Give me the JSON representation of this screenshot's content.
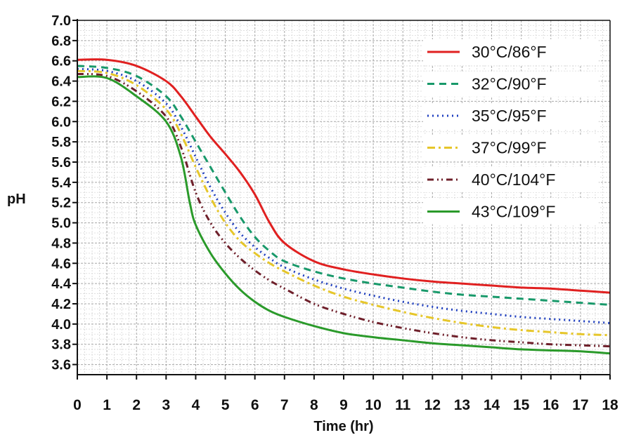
{
  "chart_data": {
    "type": "line",
    "title": "",
    "xlabel": "Time (hr)",
    "ylabel": "pH",
    "xlim": [
      0,
      18
    ],
    "ylim": [
      3.5,
      7.0
    ],
    "x_ticks": [
      0,
      1,
      2,
      3,
      4,
      5,
      6,
      7,
      8,
      9,
      10,
      11,
      12,
      13,
      14,
      15,
      16,
      17,
      18
    ],
    "y_ticks": [
      3.6,
      3.8,
      4.0,
      4.2,
      4.4,
      4.6,
      4.8,
      5.0,
      5.2,
      5.4,
      5.6,
      5.8,
      6.0,
      6.2,
      6.4,
      6.6,
      6.8,
      7.0
    ],
    "x_tick_labels": [
      "0",
      "1",
      "2",
      "3",
      "4",
      "5",
      "6",
      "7",
      "8",
      "9",
      "10",
      "11",
      "12",
      "13",
      "14",
      "15",
      "16",
      "17",
      "18"
    ],
    "y_tick_labels": [
      "3.6",
      "3.8",
      "4.0",
      "4.2",
      "4.4",
      "4.6",
      "4.8",
      "5.0",
      "5.2",
      "5.4",
      "5.6",
      "5.8",
      "6.0",
      "6.2",
      "6.4",
      "6.6",
      "6.8",
      "7.0"
    ],
    "grid": true,
    "legend_position": "top-right",
    "series": [
      {
        "name": "30°C/86°F",
        "color": "#e02020",
        "dash": "solid",
        "x": [
          0,
          1,
          2,
          3,
          3.5,
          4,
          4.5,
          5,
          5.5,
          6,
          6.5,
          7,
          8,
          9,
          10,
          11,
          12,
          13,
          14,
          15,
          16,
          17,
          18
        ],
        "values": [
          6.61,
          6.61,
          6.55,
          6.4,
          6.25,
          6.05,
          5.85,
          5.68,
          5.5,
          5.28,
          5.0,
          4.8,
          4.62,
          4.54,
          4.49,
          4.45,
          4.42,
          4.4,
          4.38,
          4.36,
          4.35,
          4.33,
          4.31
        ]
      },
      {
        "name": "32°C/90°F",
        "color": "#18996a",
        "dash": "dashed",
        "x": [
          0,
          1,
          2,
          3,
          3.5,
          4,
          4.5,
          5,
          5.5,
          6,
          6.5,
          7,
          8,
          9,
          10,
          11,
          12,
          13,
          14,
          15,
          16,
          17,
          18
        ],
        "values": [
          6.55,
          6.53,
          6.45,
          6.25,
          6.05,
          5.8,
          5.55,
          5.3,
          5.06,
          4.86,
          4.72,
          4.62,
          4.52,
          4.45,
          4.4,
          4.36,
          4.32,
          4.29,
          4.27,
          4.25,
          4.23,
          4.21,
          4.19
        ]
      },
      {
        "name": "35°C/95°F",
        "color": "#1f3fbf",
        "dash": "dotted",
        "x": [
          0,
          1,
          2,
          3,
          3.5,
          4,
          4.5,
          5,
          5.5,
          6,
          6.5,
          7,
          8,
          9,
          10,
          11,
          12,
          13,
          14,
          15,
          16,
          17,
          18
        ],
        "values": [
          6.52,
          6.5,
          6.4,
          6.18,
          5.95,
          5.65,
          5.35,
          5.1,
          4.9,
          4.76,
          4.65,
          4.56,
          4.44,
          4.35,
          4.28,
          4.22,
          4.17,
          4.13,
          4.1,
          4.07,
          4.05,
          4.03,
          4.01
        ]
      },
      {
        "name": "37°C/99°F",
        "color": "#e6c62a",
        "dash": "dashdot",
        "x": [
          0,
          1,
          2,
          3,
          3.5,
          4,
          4.5,
          5,
          5.5,
          6,
          6.5,
          7,
          8,
          9,
          10,
          11,
          12,
          13,
          14,
          15,
          16,
          17,
          18
        ],
        "values": [
          6.5,
          6.48,
          6.36,
          6.12,
          5.88,
          5.55,
          5.25,
          5.0,
          4.82,
          4.7,
          4.6,
          4.52,
          4.38,
          4.27,
          4.19,
          4.12,
          4.06,
          4.01,
          3.97,
          3.94,
          3.92,
          3.9,
          3.89
        ]
      },
      {
        "name": "40°C/104°F",
        "color": "#6e1f2a",
        "dash": "dashdotdot",
        "x": [
          0,
          1,
          2,
          3,
          3.5,
          4,
          4.5,
          5,
          5.5,
          6,
          6.5,
          7,
          8,
          9,
          10,
          11,
          12,
          13,
          14,
          15,
          16,
          17,
          18
        ],
        "values": [
          6.47,
          6.45,
          6.3,
          6.05,
          5.75,
          5.3,
          5.0,
          4.8,
          4.65,
          4.53,
          4.43,
          4.35,
          4.2,
          4.1,
          4.02,
          3.96,
          3.91,
          3.87,
          3.84,
          3.82,
          3.8,
          3.79,
          3.78
        ]
      },
      {
        "name": "43°C/109°F",
        "color": "#2a9a2a",
        "dash": "solid",
        "x": [
          0,
          1,
          2,
          3,
          3.5,
          3.8,
          4,
          4.5,
          5,
          5.5,
          6,
          6.5,
          7,
          8,
          9,
          10,
          11,
          12,
          13,
          14,
          15,
          16,
          17,
          18
        ],
        "values": [
          6.44,
          6.43,
          6.25,
          6.0,
          5.65,
          5.2,
          4.98,
          4.7,
          4.5,
          4.34,
          4.22,
          4.13,
          4.07,
          3.98,
          3.91,
          3.87,
          3.84,
          3.81,
          3.79,
          3.77,
          3.75,
          3.74,
          3.73,
          3.71
        ]
      }
    ]
  }
}
